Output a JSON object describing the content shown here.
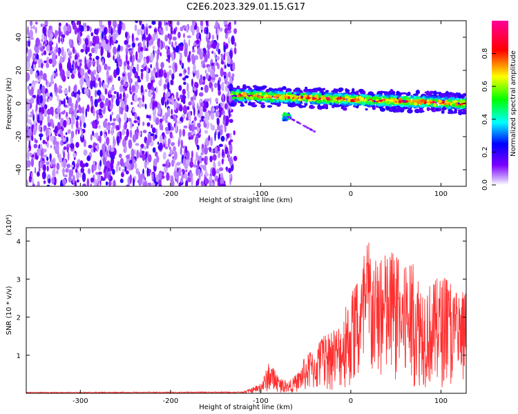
{
  "figure_title": "C2E6.2023.329.01.15.G17",
  "chart_data": [
    {
      "type": "heatmap",
      "title": "C2E6.2023.329.01.15.G17",
      "xlabel": "Height of straight line (km)",
      "ylabel": "Frequency (Hz)",
      "xlim": [
        -360,
        128
      ],
      "ylim": [
        -50,
        50
      ],
      "x_ticks": [
        -300,
        -200,
        -100,
        0,
        100
      ],
      "y_ticks": [
        -40,
        -20,
        0,
        20,
        40
      ],
      "colorbar": {
        "label": "Normalized spectral amplitude",
        "range": [
          0,
          1
        ],
        "ticks": [
          0.0,
          0.2,
          0.4,
          0.6,
          0.8
        ],
        "colors": [
          "#ffffff",
          "#7d00ff",
          "#0000ff",
          "#00ffff",
          "#00ff00",
          "#ffff00",
          "#ff0000",
          "#ff0099"
        ]
      },
      "regions": [
        {
          "name": "noise",
          "x_range": [
            -360,
            -128
          ],
          "y_range": [
            -50,
            50
          ],
          "amplitude": [
            0.0,
            0.25
          ]
        },
        {
          "name": "signal-band",
          "x_range": [
            -132,
            128
          ],
          "center_frequency": [
            5,
            0
          ],
          "half_width_hz": 4,
          "amplitude": [
            0.3,
            0.95
          ]
        }
      ],
      "grid": false
    },
    {
      "type": "line",
      "xlabel": "Height of straight line (km)",
      "ylabel": "SNR (10 * v/v)",
      "y_multiplier": "(x10⁴)",
      "xlim": [
        -360,
        128
      ],
      "ylim": [
        0,
        4.35
      ],
      "x_ticks": [
        -300,
        -200,
        -100,
        0,
        100
      ],
      "y_ticks": [
        1,
        2,
        3,
        4
      ],
      "series": [
        {
          "color": "#ff3030",
          "envelope": {
            "x": [
              -360,
              -120,
              -100,
              -90,
              -80,
              -70,
              -60,
              -50,
              -40,
              -30,
              -20,
              -10,
              0,
              10,
              20,
              30,
              40,
              50,
              60,
              70,
              80,
              90,
              100,
              110,
              120,
              128
            ],
            "y": [
              0.03,
              0.04,
              0.25,
              0.85,
              0.4,
              0.3,
              0.5,
              1.0,
              1.15,
              1.5,
              1.6,
              2.0,
              2.6,
              3.0,
              4.3,
              3.3,
              3.8,
              3.6,
              3.3,
              3.4,
              3.0,
              2.9,
              3.1,
              2.9,
              2.5,
              2.8
            ]
          }
        }
      ],
      "grid": false
    }
  ]
}
